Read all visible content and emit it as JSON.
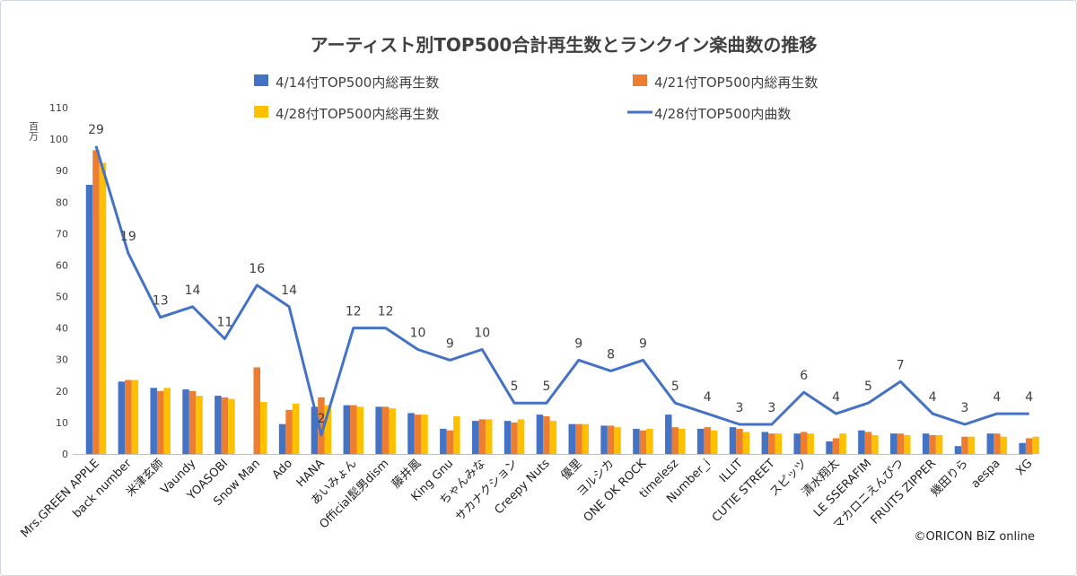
{
  "chart_data": {
    "type": "bar",
    "title": "アーティスト別TOP500合計再生数とランクイン楽曲数の推移",
    "y_unit": "百万",
    "ylim": [
      0,
      110
    ],
    "yticks": [
      0,
      10,
      20,
      30,
      40,
      50,
      60,
      70,
      80,
      90,
      100,
      110
    ],
    "grid": false,
    "legend_position": "top",
    "credit": "©ORICON BiZ online",
    "categories": [
      "Mrs.GREEN APPLE",
      "back number",
      "米津玄師",
      "Vaundy",
      "YOASOBI",
      "Snow Man",
      "Ado",
      "HANA",
      "あいみょん",
      "Official髭男dism",
      "藤井風",
      "King Gnu",
      "ちゃんみな",
      "サカナクション",
      "Creepy Nuts",
      "優里",
      "ヨルシカ",
      "ONE OK ROCK",
      "timelesz",
      "Number_i",
      "ILLIT",
      "CUTIE STREET",
      "スピッツ",
      "清水翔太",
      "LE SSERAFIM",
      "マカロニえんぴつ",
      "FRUITS ZIPPER",
      "幾田りら",
      "aespa",
      "XG"
    ],
    "series": [
      {
        "name": "4/14付TOP500内総再生数",
        "kind": "bar",
        "color": "#4472C4",
        "values": [
          85.5,
          23,
          21,
          20.5,
          18.5,
          0,
          9.5,
          15,
          15.5,
          15,
          13,
          8,
          10.5,
          10.5,
          12.5,
          9.5,
          9,
          8,
          12.5,
          8,
          8.5,
          7,
          6.5,
          4,
          7.5,
          6.5,
          6.5,
          2.5,
          6.5,
          3.5
        ]
      },
      {
        "name": "4/21付TOP500内総再生数",
        "kind": "bar",
        "color": "#ED7D31",
        "values": [
          96.5,
          23.5,
          20,
          20,
          18,
          27.5,
          14,
          18,
          15.5,
          15,
          12.5,
          7.5,
          11,
          10,
          12,
          9.5,
          9,
          7.5,
          8.5,
          8.5,
          8,
          6.5,
          7,
          5,
          7,
          6.5,
          6,
          5.5,
          6.5,
          5
        ]
      },
      {
        "name": "4/28付TOP500内総再生数",
        "kind": "bar",
        "color": "#FFC000",
        "values": [
          92.5,
          23.5,
          21,
          18.5,
          17.5,
          16.5,
          16,
          15.5,
          15,
          14.5,
          12.5,
          12,
          11,
          11,
          10.5,
          9.5,
          8.5,
          8,
          8,
          7.5,
          7,
          6.5,
          6.5,
          6.5,
          6,
          6,
          6,
          5.5,
          5.5,
          5.5
        ]
      },
      {
        "name": "4/28付TOP500内曲数",
        "kind": "line",
        "color": "#4472C4",
        "values": [
          29,
          19,
          13,
          14,
          11,
          16,
          14,
          2,
          12,
          12,
          10,
          9,
          10,
          5,
          5,
          9,
          8,
          9,
          5,
          4,
          3,
          3,
          6,
          4,
          5,
          7,
          4,
          3,
          4,
          4
        ]
      }
    ]
  }
}
